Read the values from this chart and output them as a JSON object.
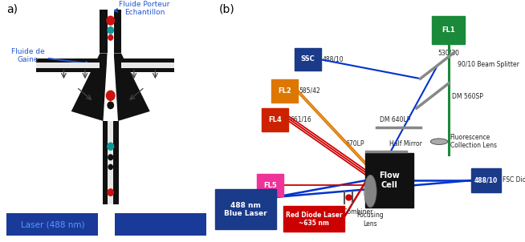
{
  "fig_width": 6.54,
  "fig_height": 3.02,
  "bg_color": "#ffffff",
  "panel_a": {
    "label": "a)",
    "text_fluide_gaine": "Fluide de\nGaine",
    "text_fluide_porteur": "Fluide Porteur\nEchantillon",
    "text_laser": "Laser (488 nm)",
    "blue_color": "#2255cc",
    "laser_fill": "#1a3a9a",
    "laser_text_color": "#5599ff",
    "black": "#111111",
    "white": "#ffffff",
    "gray_inner": "#e8e8e8"
  },
  "panel_b": {
    "label": "(b)",
    "fl1_color": "#1a8a3a",
    "fl1_border": "#1a8a3a",
    "ssc_color": "#1a3a8a",
    "fl2_color": "#dd7700",
    "fl4_color": "#cc2200",
    "fl5_color": "#ee3399",
    "flow_cell_color": "#111111",
    "blue_laser_color": "#1a3a8a",
    "red_laser_color": "#cc0000",
    "fsc_color": "#1a3a8a",
    "beam_blue": "#0033cc",
    "beam_green": "#1a8a3a",
    "beam_red": "#cc0000",
    "beam_orange": "#dd7700",
    "mirror_color": "#888888",
    "lens_color": "#777777"
  }
}
